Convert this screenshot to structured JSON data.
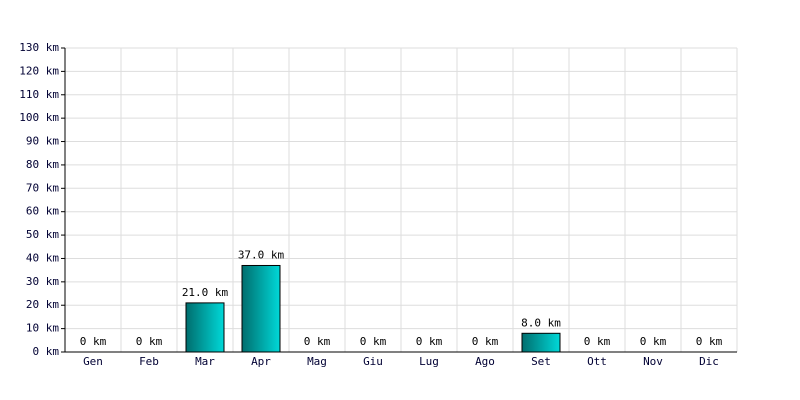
{
  "chart_data": {
    "type": "bar",
    "categories": [
      "Gen",
      "Feb",
      "Mar",
      "Apr",
      "Mag",
      "Giu",
      "Lug",
      "Ago",
      "Set",
      "Ott",
      "Nov",
      "Dic"
    ],
    "values": [
      0,
      0,
      21,
      37,
      0,
      0,
      0,
      0,
      8,
      0,
      0,
      0
    ],
    "value_labels": [
      "0 km",
      "0 km",
      "21.0 km",
      "37.0 km",
      "0 km",
      "0 km",
      "0 km",
      "0 km",
      "8.0 km",
      "0 km",
      "0 km",
      "0 km"
    ],
    "color": "#00d8d8",
    "ylim": [
      0,
      130
    ],
    "yticks": [
      {
        "value": 0,
        "label": "0 km"
      },
      {
        "value": 10,
        "label": "10 km"
      },
      {
        "value": 20,
        "label": "20 km"
      },
      {
        "value": 30,
        "label": "30 km"
      },
      {
        "value": 40,
        "label": "40 km"
      },
      {
        "value": 50,
        "label": "50 km"
      },
      {
        "value": 60,
        "label": "60 km"
      },
      {
        "value": 70,
        "label": "70 km"
      },
      {
        "value": 80,
        "label": "80 km"
      },
      {
        "value": 90,
        "label": "90 km"
      },
      {
        "value": 100,
        "label": "100 km"
      },
      {
        "value": 110,
        "label": "110 km"
      },
      {
        "value": 120,
        "label": "120 km"
      },
      {
        "value": 130,
        "label": "130 km"
      }
    ],
    "grid": true
  }
}
